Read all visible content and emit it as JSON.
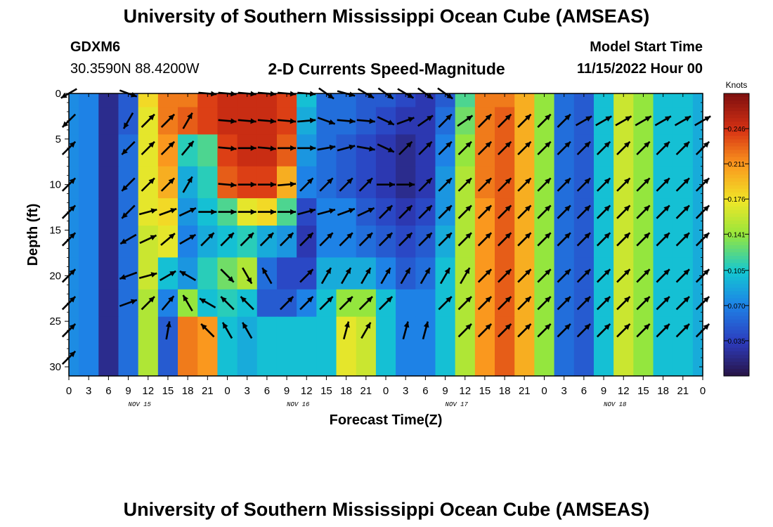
{
  "header": {
    "title": "University of Southern Mississippi Ocean Cube (AMSEAS)",
    "station_id": "GDXM6",
    "coords": "30.3590N  88.4200W",
    "plot_title": "2-D Currents Speed-Magnitude",
    "start_label": "Model Start Time",
    "start_value": "11/15/2022 Hour 00"
  },
  "footer_title": "University of Southern Mississippi Ocean Cube (AMSEAS)",
  "chart_data": {
    "type": "heatmap",
    "title": "2-D Currents Speed-Magnitude",
    "xlabel": "Forecast Time(Z)",
    "ylabel": "Depth (ft)",
    "colorbar_label": "Knots",
    "colorbar_ticks": [
      "0.246",
      "0.211",
      "0.176",
      "0.141",
      "0.105",
      "0.070",
      "0.035"
    ],
    "colorbar_tick_values": [
      0.246,
      0.211,
      0.176,
      0.141,
      0.105,
      0.07,
      0.035
    ],
    "colorbar_range": [
      0.0,
      0.281
    ],
    "x_tick_labels": [
      "0",
      "3",
      "6",
      "9",
      "12",
      "15",
      "18",
      "21",
      "0",
      "3",
      "6",
      "9",
      "12",
      "15",
      "18",
      "21",
      "0",
      "3",
      "6",
      "9",
      "12",
      "15",
      "18",
      "21",
      "0",
      "3",
      "6",
      "9",
      "12",
      "15",
      "18",
      "21",
      "0"
    ],
    "x_range_hours": [
      0,
      96
    ],
    "date_labels": [
      {
        "label": "NOV 15",
        "hour": 12
      },
      {
        "label": "NOV 16",
        "hour": 36
      },
      {
        "label": "NOV 17",
        "hour": 60
      },
      {
        "label": "NOV 18",
        "hour": 84
      }
    ],
    "y_tick_labels": [
      "0",
      "5",
      "10",
      "15",
      "20",
      "25",
      "30"
    ],
    "y_tick_values": [
      0,
      5,
      10,
      15,
      20,
      25,
      30
    ],
    "y_range": [
      0,
      31
    ],
    "y_inverted": true,
    "depths": [
      0,
      3,
      6,
      10,
      13,
      16,
      20,
      23,
      26,
      29
    ],
    "hours": [
      0,
      3,
      6,
      9,
      12,
      15,
      18,
      21,
      24,
      27,
      30,
      33,
      36,
      39,
      42,
      45,
      48,
      51,
      54,
      57,
      60,
      63,
      66,
      69,
      72,
      75,
      78,
      81,
      84,
      87,
      90,
      93,
      96
    ],
    "speed": [
      [
        0.075,
        0.07,
        0.02,
        0.05,
        0.18,
        0.22,
        0.22,
        0.24,
        0.25,
        0.25,
        0.25,
        0.24,
        0.1,
        0.06,
        0.06,
        0.05,
        0.05,
        0.04,
        0.03,
        0.05,
        0.12,
        0.22,
        0.22,
        0.2,
        0.14,
        0.06,
        0.05,
        0.1,
        0.16,
        0.14,
        0.1,
        0.1,
        0.09
      ],
      [
        0.075,
        0.07,
        0.02,
        0.05,
        0.17,
        0.22,
        0.23,
        0.24,
        0.25,
        0.25,
        0.25,
        0.24,
        0.09,
        0.06,
        0.06,
        0.05,
        0.04,
        0.03,
        0.03,
        0.06,
        0.13,
        0.22,
        0.23,
        0.2,
        0.14,
        0.06,
        0.05,
        0.1,
        0.16,
        0.14,
        0.1,
        0.1,
        0.09
      ],
      [
        0.075,
        0.07,
        0.02,
        0.06,
        0.17,
        0.21,
        0.11,
        0.12,
        0.24,
        0.25,
        0.25,
        0.23,
        0.08,
        0.06,
        0.05,
        0.04,
        0.03,
        0.02,
        0.03,
        0.07,
        0.14,
        0.22,
        0.23,
        0.2,
        0.14,
        0.06,
        0.05,
        0.1,
        0.16,
        0.14,
        0.1,
        0.1,
        0.09
      ],
      [
        0.075,
        0.07,
        0.02,
        0.06,
        0.17,
        0.2,
        0.09,
        0.11,
        0.23,
        0.24,
        0.24,
        0.2,
        0.07,
        0.06,
        0.05,
        0.04,
        0.03,
        0.02,
        0.03,
        0.08,
        0.15,
        0.22,
        0.23,
        0.2,
        0.14,
        0.06,
        0.05,
        0.1,
        0.16,
        0.14,
        0.1,
        0.1,
        0.09
      ],
      [
        0.075,
        0.07,
        0.02,
        0.06,
        0.17,
        0.18,
        0.08,
        0.1,
        0.12,
        0.17,
        0.18,
        0.12,
        0.04,
        0.07,
        0.07,
        0.05,
        0.04,
        0.03,
        0.04,
        0.08,
        0.15,
        0.21,
        0.23,
        0.2,
        0.14,
        0.06,
        0.05,
        0.1,
        0.16,
        0.14,
        0.1,
        0.1,
        0.09
      ],
      [
        0.075,
        0.07,
        0.02,
        0.06,
        0.16,
        0.17,
        0.07,
        0.09,
        0.1,
        0.11,
        0.09,
        0.08,
        0.03,
        0.07,
        0.07,
        0.06,
        0.05,
        0.04,
        0.05,
        0.09,
        0.15,
        0.21,
        0.23,
        0.2,
        0.14,
        0.06,
        0.05,
        0.1,
        0.16,
        0.14,
        0.1,
        0.1,
        0.09
      ],
      [
        0.075,
        0.07,
        0.02,
        0.06,
        0.16,
        0.1,
        0.08,
        0.11,
        0.13,
        0.15,
        0.06,
        0.04,
        0.04,
        0.09,
        0.09,
        0.09,
        0.07,
        0.05,
        0.06,
        0.1,
        0.15,
        0.21,
        0.23,
        0.2,
        0.14,
        0.06,
        0.05,
        0.1,
        0.16,
        0.14,
        0.1,
        0.1,
        0.09
      ],
      [
        0.075,
        0.07,
        0.02,
        0.06,
        0.15,
        0.07,
        0.14,
        0.1,
        0.11,
        0.1,
        0.05,
        0.05,
        0.07,
        0.1,
        0.14,
        0.14,
        0.1,
        0.07,
        0.07,
        0.1,
        0.15,
        0.21,
        0.23,
        0.2,
        0.14,
        0.06,
        0.05,
        0.1,
        0.16,
        0.14,
        0.1,
        0.1,
        0.09
      ],
      [
        0.075,
        0.07,
        0.02,
        0.06,
        0.15,
        0.05,
        0.22,
        0.21,
        0.1,
        0.09,
        0.1,
        0.1,
        0.1,
        0.1,
        0.17,
        0.16,
        0.1,
        0.07,
        0.07,
        0.1,
        0.15,
        0.21,
        0.23,
        0.2,
        0.14,
        0.06,
        0.05,
        0.1,
        0.16,
        0.14,
        0.1,
        0.1,
        0.09
      ],
      [
        0.075,
        0.07,
        0.02,
        0.06,
        0.15,
        0.05,
        0.22,
        0.21,
        0.1,
        0.09,
        0.1,
        0.1,
        0.1,
        0.1,
        0.17,
        0.16,
        0.1,
        0.07,
        0.07,
        0.1,
        0.15,
        0.21,
        0.23,
        0.2,
        0.14,
        0.06,
        0.05,
        0.1,
        0.16,
        0.14,
        0.1,
        0.1,
        0.09
      ]
    ],
    "vector_directions_deg": [
      [
        240,
        0,
        0,
        110,
        0,
        0,
        0,
        95,
        95,
        95,
        95,
        95,
        95,
        125,
        105,
        120,
        125,
        120,
        125,
        125,
        0,
        0,
        0,
        0,
        0,
        0,
        0,
        0,
        0,
        0,
        0,
        0,
        0
      ],
      [
        225,
        0,
        0,
        210,
        45,
        45,
        30,
        0,
        95,
        95,
        95,
        95,
        85,
        110,
        95,
        95,
        115,
        70,
        55,
        45,
        55,
        45,
        45,
        45,
        45,
        45,
        60,
        60,
        60,
        60,
        60,
        60,
        60
      ],
      [
        45,
        0,
        0,
        225,
        45,
        45,
        40,
        0,
        95,
        90,
        95,
        90,
        90,
        80,
        75,
        100,
        115,
        45,
        45,
        45,
        45,
        45,
        45,
        45,
        45,
        45,
        45,
        45,
        45,
        45,
        45,
        45,
        45
      ],
      [
        45,
        0,
        0,
        225,
        45,
        45,
        30,
        0,
        95,
        90,
        90,
        85,
        45,
        45,
        45,
        45,
        90,
        90,
        45,
        45,
        45,
        45,
        45,
        45,
        45,
        45,
        45,
        45,
        45,
        45,
        45,
        45,
        45
      ],
      [
        45,
        0,
        0,
        225,
        75,
        70,
        65,
        90,
        90,
        90,
        90,
        90,
        75,
        75,
        70,
        65,
        45,
        45,
        45,
        45,
        45,
        45,
        45,
        45,
        45,
        45,
        45,
        45,
        45,
        45,
        45,
        45,
        45
      ],
      [
        45,
        0,
        0,
        240,
        65,
        50,
        60,
        45,
        45,
        45,
        45,
        45,
        45,
        45,
        45,
        45,
        45,
        45,
        45,
        45,
        45,
        45,
        45,
        45,
        45,
        45,
        45,
        45,
        45,
        45,
        45,
        45,
        45
      ],
      [
        45,
        0,
        0,
        250,
        75,
        60,
        300,
        0,
        135,
        150,
        330,
        0,
        45,
        30,
        30,
        30,
        30,
        30,
        30,
        30,
        30,
        45,
        45,
        45,
        45,
        45,
        45,
        45,
        45,
        45,
        45,
        45,
        45
      ],
      [
        45,
        0,
        0,
        70,
        45,
        40,
        330,
        300,
        315,
        315,
        0,
        45,
        45,
        45,
        45,
        45,
        45,
        0,
        0,
        45,
        45,
        45,
        45,
        45,
        45,
        45,
        45,
        45,
        45,
        45,
        45,
        45,
        45
      ],
      [
        45,
        0,
        0,
        0,
        0,
        10,
        0,
        315,
        330,
        330,
        0,
        0,
        0,
        0,
        15,
        30,
        0,
        15,
        15,
        0,
        45,
        45,
        45,
        45,
        45,
        45,
        45,
        45,
        45,
        45,
        45,
        45,
        45
      ],
      [
        45,
        0,
        0,
        0,
        0,
        0,
        0,
        0,
        0,
        0,
        0,
        0,
        0,
        0,
        0,
        0,
        0,
        0,
        0,
        0,
        0,
        0,
        0,
        0,
        0,
        0,
        0,
        0,
        0,
        0,
        0,
        0,
        0
      ]
    ]
  }
}
